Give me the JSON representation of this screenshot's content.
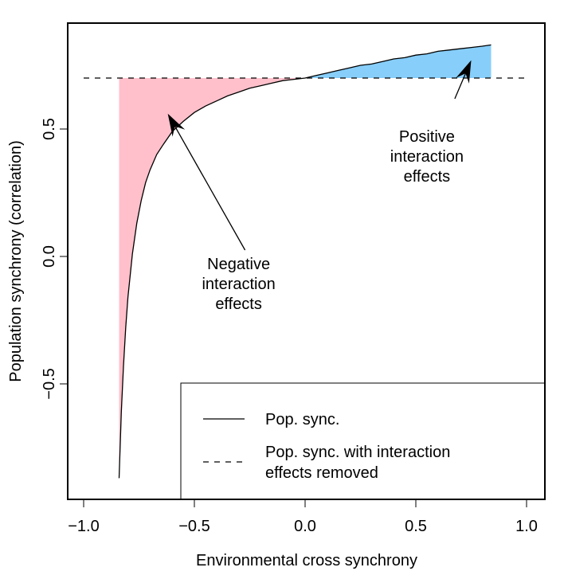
{
  "chart_data": {
    "type": "line",
    "title": "",
    "xlabel": "Environmental cross synchrony",
    "ylabel": "Population synchrony (correlation)",
    "xlim": [
      -1.1,
      1.05
    ],
    "ylim": [
      -0.95,
      0.88
    ],
    "xticks": [
      -1.0,
      -0.5,
      0.0,
      0.5,
      1.0
    ],
    "xtick_labels": [
      "−1.0",
      "−0.5",
      "0.0",
      "0.5",
      "1.0"
    ],
    "yticks": [
      -0.5,
      0.0,
      0.5
    ],
    "ytick_labels": [
      "−0.5",
      "0.0",
      "0.5"
    ],
    "grid": false,
    "legend_position": "bottom-right",
    "series": [
      {
        "name": "Pop. sync.",
        "style": "solid",
        "color": "#000000",
        "x": [
          -0.84,
          -0.83,
          -0.82,
          -0.81,
          -0.8,
          -0.78,
          -0.76,
          -0.74,
          -0.72,
          -0.7,
          -0.67,
          -0.64,
          -0.6,
          -0.55,
          -0.5,
          -0.45,
          -0.4,
          -0.35,
          -0.3,
          -0.25,
          -0.2,
          -0.15,
          -0.1,
          -0.05,
          0.0,
          0.05,
          0.1,
          0.15,
          0.2,
          0.25,
          0.3,
          0.35,
          0.4,
          0.45,
          0.5,
          0.55,
          0.6,
          0.65,
          0.7,
          0.75,
          0.8,
          0.84
        ],
        "y": [
          -0.87,
          -0.61,
          -0.43,
          -0.28,
          -0.16,
          0.01,
          0.13,
          0.22,
          0.29,
          0.34,
          0.4,
          0.44,
          0.49,
          0.53,
          0.565,
          0.59,
          0.61,
          0.63,
          0.645,
          0.66,
          0.67,
          0.68,
          0.69,
          0.695,
          0.7,
          0.71,
          0.72,
          0.73,
          0.74,
          0.75,
          0.755,
          0.765,
          0.775,
          0.78,
          0.79,
          0.795,
          0.805,
          0.81,
          0.815,
          0.82,
          0.825,
          0.83
        ]
      },
      {
        "name": "Pop. sync. with interaction effects removed",
        "style": "dashed",
        "color": "#000000",
        "x": [
          -1.0,
          1.0
        ],
        "y": [
          0.7,
          0.7
        ]
      }
    ],
    "shaded_regions": [
      {
        "label": "Negative interaction effects",
        "color": "#ffc0cb",
        "x_from": -0.84,
        "x_to": 0.0
      },
      {
        "label": "Positive interaction effects",
        "color": "#87cefa",
        "x_from": 0.0,
        "x_to": 0.84
      }
    ],
    "annotations": [
      {
        "lines": [
          "Negative",
          "interaction",
          "effects"
        ],
        "x": -0.3,
        "y": -0.05,
        "arrow_to": [
          -0.62,
          0.56
        ]
      },
      {
        "lines": [
          "Positive",
          "interaction",
          "effects"
        ],
        "x": 0.55,
        "y": 0.45,
        "arrow_to": [
          0.75,
          0.77
        ]
      }
    ]
  }
}
